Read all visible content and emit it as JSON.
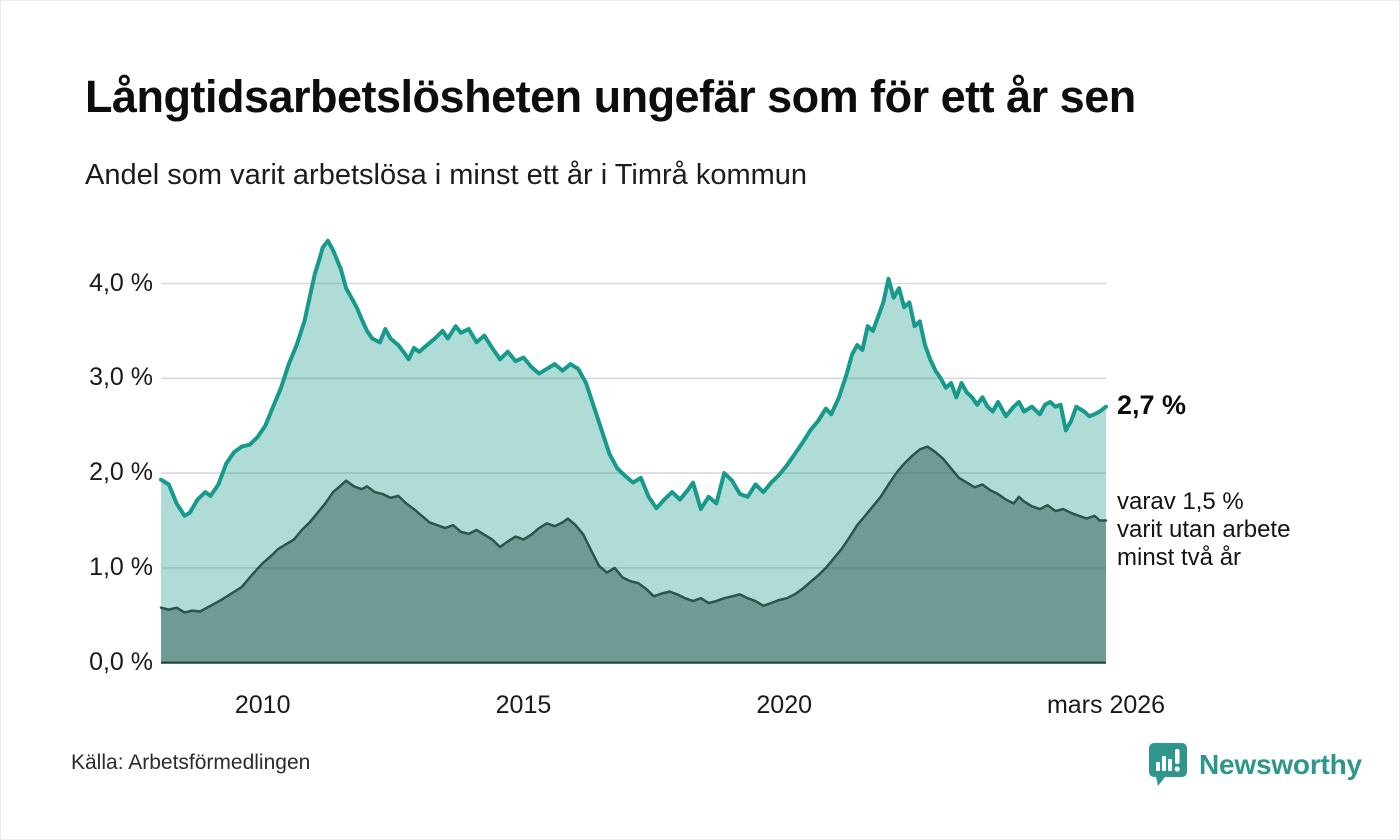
{
  "header": {
    "title": "Långtidsarbetslösheten ungefär som för ett år sen",
    "subtitle": "Andel som varit arbetslösa i minst ett år i Timrå kommun"
  },
  "footer": {
    "source": "Källa: Arbetsförmedlingen",
    "brand": "Newsworthy"
  },
  "colors": {
    "accent": "#2f968c",
    "line_min_1yr": "#17998b",
    "fill_min_1yr": "rgba(21,153,137,0.34)",
    "line_min_2yr": "#2c544d",
    "fill_min_2yr": "rgba(31,72,65,0.44)",
    "gridline": "#d8d8d8",
    "axis": "#25403a"
  },
  "chart_data": {
    "type": "area",
    "title": "Långtidsarbetslösheten ungefär som för ett år sen",
    "subtitle": "Andel som varit arbetslösa i minst ett år i Timrå kommun",
    "xlabel": "",
    "ylabel": "",
    "grid": true,
    "legend_position": "none",
    "xlim": [
      2008.05,
      2026.17
    ],
    "ylim": [
      0,
      4.575
    ],
    "x_ticks": [
      {
        "year": 2010,
        "label": "2010"
      },
      {
        "year": 2015,
        "label": "2015"
      },
      {
        "year": 2020,
        "label": "2020"
      },
      {
        "year": 2026.17,
        "label": "mars 2026"
      }
    ],
    "y_ticks": [
      {
        "value": 0.0,
        "label": "0,0 %"
      },
      {
        "value": 1.0,
        "label": "1,0 %"
      },
      {
        "value": 2.0,
        "label": "2,0 %"
      },
      {
        "value": 3.0,
        "label": "3,0 %"
      },
      {
        "value": 4.0,
        "label": "4,0 %"
      }
    ],
    "end_labels": {
      "primary": "2,7 %",
      "secondary": "varav 1,5 %\nvarit utan arbete\nminst två år"
    },
    "series": [
      {
        "name": "Andel som varit arbetslösa minst ett år",
        "end_value_label": "2,7 %",
        "points": [
          [
            2008.05,
            1.93
          ],
          [
            2008.2,
            1.88
          ],
          [
            2008.35,
            1.68
          ],
          [
            2008.5,
            1.55
          ],
          [
            2008.6,
            1.58
          ],
          [
            2008.75,
            1.72
          ],
          [
            2008.9,
            1.8
          ],
          [
            2009.0,
            1.76
          ],
          [
            2009.15,
            1.88
          ],
          [
            2009.3,
            2.1
          ],
          [
            2009.45,
            2.22
          ],
          [
            2009.6,
            2.28
          ],
          [
            2009.75,
            2.3
          ],
          [
            2009.9,
            2.38
          ],
          [
            2010.05,
            2.5
          ],
          [
            2010.2,
            2.7
          ],
          [
            2010.35,
            2.9
          ],
          [
            2010.5,
            3.15
          ],
          [
            2010.65,
            3.35
          ],
          [
            2010.8,
            3.6
          ],
          [
            2010.9,
            3.85
          ],
          [
            2011.0,
            4.1
          ],
          [
            2011.1,
            4.28
          ],
          [
            2011.15,
            4.38
          ],
          [
            2011.25,
            4.45
          ],
          [
            2011.35,
            4.35
          ],
          [
            2011.5,
            4.15
          ],
          [
            2011.6,
            3.95
          ],
          [
            2011.7,
            3.85
          ],
          [
            2011.8,
            3.75
          ],
          [
            2011.9,
            3.62
          ],
          [
            2012.0,
            3.5
          ],
          [
            2012.1,
            3.42
          ],
          [
            2012.25,
            3.38
          ],
          [
            2012.35,
            3.52
          ],
          [
            2012.45,
            3.42
          ],
          [
            2012.6,
            3.35
          ],
          [
            2012.7,
            3.28
          ],
          [
            2012.8,
            3.2
          ],
          [
            2012.9,
            3.32
          ],
          [
            2013.0,
            3.28
          ],
          [
            2013.15,
            3.35
          ],
          [
            2013.3,
            3.42
          ],
          [
            2013.45,
            3.5
          ],
          [
            2013.55,
            3.42
          ],
          [
            2013.7,
            3.55
          ],
          [
            2013.8,
            3.48
          ],
          [
            2013.95,
            3.52
          ],
          [
            2014.1,
            3.38
          ],
          [
            2014.25,
            3.45
          ],
          [
            2014.4,
            3.32
          ],
          [
            2014.55,
            3.2
          ],
          [
            2014.7,
            3.28
          ],
          [
            2014.85,
            3.18
          ],
          [
            2015.0,
            3.22
          ],
          [
            2015.15,
            3.12
          ],
          [
            2015.3,
            3.05
          ],
          [
            2015.45,
            3.1
          ],
          [
            2015.6,
            3.15
          ],
          [
            2015.75,
            3.08
          ],
          [
            2015.9,
            3.15
          ],
          [
            2016.05,
            3.1
          ],
          [
            2016.2,
            2.95
          ],
          [
            2016.35,
            2.7
          ],
          [
            2016.5,
            2.45
          ],
          [
            2016.65,
            2.2
          ],
          [
            2016.8,
            2.05
          ],
          [
            2016.95,
            1.97
          ],
          [
            2017.1,
            1.9
          ],
          [
            2017.25,
            1.95
          ],
          [
            2017.4,
            1.75
          ],
          [
            2017.55,
            1.63
          ],
          [
            2017.7,
            1.72
          ],
          [
            2017.85,
            1.8
          ],
          [
            2018.0,
            1.72
          ],
          [
            2018.15,
            1.82
          ],
          [
            2018.25,
            1.9
          ],
          [
            2018.4,
            1.62
          ],
          [
            2018.55,
            1.75
          ],
          [
            2018.7,
            1.68
          ],
          [
            2018.85,
            2.0
          ],
          [
            2019.0,
            1.92
          ],
          [
            2019.15,
            1.78
          ],
          [
            2019.3,
            1.75
          ],
          [
            2019.45,
            1.88
          ],
          [
            2019.6,
            1.8
          ],
          [
            2019.75,
            1.9
          ],
          [
            2019.9,
            1.98
          ],
          [
            2020.05,
            2.08
          ],
          [
            2020.2,
            2.2
          ],
          [
            2020.35,
            2.32
          ],
          [
            2020.5,
            2.45
          ],
          [
            2020.65,
            2.55
          ],
          [
            2020.8,
            2.68
          ],
          [
            2020.9,
            2.62
          ],
          [
            2021.05,
            2.8
          ],
          [
            2021.2,
            3.05
          ],
          [
            2021.3,
            3.25
          ],
          [
            2021.4,
            3.35
          ],
          [
            2021.5,
            3.3
          ],
          [
            2021.6,
            3.55
          ],
          [
            2021.7,
            3.5
          ],
          [
            2021.8,
            3.65
          ],
          [
            2021.9,
            3.8
          ],
          [
            2022.0,
            4.05
          ],
          [
            2022.1,
            3.85
          ],
          [
            2022.2,
            3.95
          ],
          [
            2022.3,
            3.75
          ],
          [
            2022.4,
            3.8
          ],
          [
            2022.5,
            3.55
          ],
          [
            2022.6,
            3.6
          ],
          [
            2022.7,
            3.35
          ],
          [
            2022.8,
            3.2
          ],
          [
            2022.9,
            3.08
          ],
          [
            2023.0,
            3.0
          ],
          [
            2023.1,
            2.9
          ],
          [
            2023.2,
            2.95
          ],
          [
            2023.3,
            2.8
          ],
          [
            2023.4,
            2.95
          ],
          [
            2023.5,
            2.85
          ],
          [
            2023.6,
            2.8
          ],
          [
            2023.7,
            2.72
          ],
          [
            2023.8,
            2.8
          ],
          [
            2023.9,
            2.7
          ],
          [
            2024.0,
            2.65
          ],
          [
            2024.1,
            2.75
          ],
          [
            2024.25,
            2.6
          ],
          [
            2024.4,
            2.7
          ],
          [
            2024.5,
            2.75
          ],
          [
            2024.6,
            2.65
          ],
          [
            2024.75,
            2.7
          ],
          [
            2024.9,
            2.62
          ],
          [
            2025.0,
            2.72
          ],
          [
            2025.1,
            2.75
          ],
          [
            2025.2,
            2.7
          ],
          [
            2025.3,
            2.72
          ],
          [
            2025.4,
            2.45
          ],
          [
            2025.5,
            2.55
          ],
          [
            2025.6,
            2.7
          ],
          [
            2025.75,
            2.65
          ],
          [
            2025.85,
            2.6
          ],
          [
            2025.95,
            2.62
          ],
          [
            2026.05,
            2.65
          ],
          [
            2026.17,
            2.7
          ]
        ]
      },
      {
        "name": "varav varit utan arbete minst två år",
        "end_value_label": "1,5 %",
        "points": [
          [
            2008.05,
            0.58
          ],
          [
            2008.2,
            0.56
          ],
          [
            2008.35,
            0.58
          ],
          [
            2008.5,
            0.53
          ],
          [
            2008.65,
            0.55
          ],
          [
            2008.8,
            0.54
          ],
          [
            2009.0,
            0.6
          ],
          [
            2009.2,
            0.66
          ],
          [
            2009.4,
            0.73
          ],
          [
            2009.6,
            0.8
          ],
          [
            2009.8,
            0.93
          ],
          [
            2010.0,
            1.05
          ],
          [
            2010.15,
            1.12
          ],
          [
            2010.3,
            1.2
          ],
          [
            2010.45,
            1.25
          ],
          [
            2010.6,
            1.3
          ],
          [
            2010.75,
            1.4
          ],
          [
            2010.9,
            1.48
          ],
          [
            2011.05,
            1.58
          ],
          [
            2011.2,
            1.68
          ],
          [
            2011.35,
            1.8
          ],
          [
            2011.5,
            1.87
          ],
          [
            2011.6,
            1.92
          ],
          [
            2011.75,
            1.86
          ],
          [
            2011.9,
            1.83
          ],
          [
            2012.0,
            1.86
          ],
          [
            2012.15,
            1.8
          ],
          [
            2012.3,
            1.78
          ],
          [
            2012.45,
            1.74
          ],
          [
            2012.6,
            1.76
          ],
          [
            2012.75,
            1.68
          ],
          [
            2012.9,
            1.62
          ],
          [
            2013.05,
            1.55
          ],
          [
            2013.2,
            1.48
          ],
          [
            2013.35,
            1.45
          ],
          [
            2013.5,
            1.42
          ],
          [
            2013.65,
            1.45
          ],
          [
            2013.8,
            1.38
          ],
          [
            2013.95,
            1.36
          ],
          [
            2014.1,
            1.4
          ],
          [
            2014.25,
            1.35
          ],
          [
            2014.4,
            1.3
          ],
          [
            2014.55,
            1.22
          ],
          [
            2014.7,
            1.28
          ],
          [
            2014.85,
            1.33
          ],
          [
            2015.0,
            1.3
          ],
          [
            2015.15,
            1.35
          ],
          [
            2015.3,
            1.42
          ],
          [
            2015.45,
            1.47
          ],
          [
            2015.6,
            1.44
          ],
          [
            2015.75,
            1.48
          ],
          [
            2015.85,
            1.52
          ],
          [
            2016.0,
            1.45
          ],
          [
            2016.15,
            1.35
          ],
          [
            2016.3,
            1.18
          ],
          [
            2016.45,
            1.02
          ],
          [
            2016.6,
            0.95
          ],
          [
            2016.75,
            1.0
          ],
          [
            2016.9,
            0.9
          ],
          [
            2017.05,
            0.86
          ],
          [
            2017.2,
            0.84
          ],
          [
            2017.35,
            0.78
          ],
          [
            2017.5,
            0.7
          ],
          [
            2017.65,
            0.73
          ],
          [
            2017.8,
            0.75
          ],
          [
            2017.95,
            0.72
          ],
          [
            2018.1,
            0.68
          ],
          [
            2018.25,
            0.65
          ],
          [
            2018.4,
            0.68
          ],
          [
            2018.55,
            0.63
          ],
          [
            2018.7,
            0.65
          ],
          [
            2018.85,
            0.68
          ],
          [
            2019.0,
            0.7
          ],
          [
            2019.15,
            0.72
          ],
          [
            2019.3,
            0.68
          ],
          [
            2019.45,
            0.65
          ],
          [
            2019.6,
            0.6
          ],
          [
            2019.75,
            0.63
          ],
          [
            2019.9,
            0.66
          ],
          [
            2020.05,
            0.68
          ],
          [
            2020.2,
            0.72
          ],
          [
            2020.35,
            0.78
          ],
          [
            2020.5,
            0.85
          ],
          [
            2020.65,
            0.92
          ],
          [
            2020.8,
            1.0
          ],
          [
            2020.95,
            1.1
          ],
          [
            2021.1,
            1.2
          ],
          [
            2021.25,
            1.32
          ],
          [
            2021.4,
            1.45
          ],
          [
            2021.55,
            1.55
          ],
          [
            2021.7,
            1.65
          ],
          [
            2021.85,
            1.75
          ],
          [
            2022.0,
            1.88
          ],
          [
            2022.15,
            2.0
          ],
          [
            2022.3,
            2.1
          ],
          [
            2022.45,
            2.18
          ],
          [
            2022.6,
            2.25
          ],
          [
            2022.75,
            2.28
          ],
          [
            2022.9,
            2.22
          ],
          [
            2023.05,
            2.15
          ],
          [
            2023.2,
            2.05
          ],
          [
            2023.35,
            1.95
          ],
          [
            2023.5,
            1.9
          ],
          [
            2023.65,
            1.85
          ],
          [
            2023.8,
            1.88
          ],
          [
            2023.95,
            1.82
          ],
          [
            2024.1,
            1.78
          ],
          [
            2024.25,
            1.72
          ],
          [
            2024.4,
            1.68
          ],
          [
            2024.5,
            1.75
          ],
          [
            2024.6,
            1.7
          ],
          [
            2024.75,
            1.65
          ],
          [
            2024.9,
            1.62
          ],
          [
            2025.05,
            1.66
          ],
          [
            2025.2,
            1.6
          ],
          [
            2025.35,
            1.62
          ],
          [
            2025.5,
            1.58
          ],
          [
            2025.65,
            1.55
          ],
          [
            2025.8,
            1.52
          ],
          [
            2025.95,
            1.55
          ],
          [
            2026.05,
            1.5
          ],
          [
            2026.17,
            1.5
          ]
        ]
      }
    ]
  }
}
